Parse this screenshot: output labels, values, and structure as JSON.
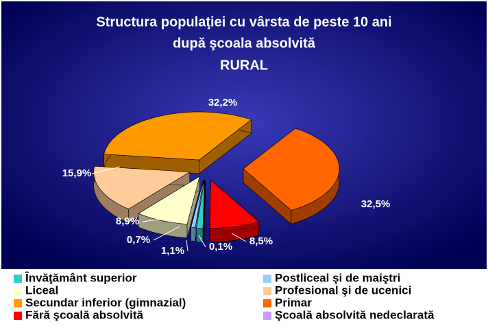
{
  "chart_data": {
    "type": "pie3d",
    "title_lines": [
      "Structura populaţiei cu vârsta de peste 10 ani",
      "după şcoala absolvită"
    ],
    "subtitle": "RURAL",
    "categories": [
      "Învăţământ superior",
      "Postliceal şi de maiştri",
      "Liceal",
      "Profesional şi de ucenici",
      "Secundar inferior (gimnazial)",
      "Primar",
      "Fără şcoală absolvită",
      "Şcoală absolvită nedeclarată"
    ],
    "values": [
      1.1,
      0.7,
      8.9,
      15.9,
      32.2,
      32.5,
      8.5,
      0.1
    ],
    "value_labels": [
      "1,1%",
      "0,7%",
      "8,9%",
      "15,9%",
      "32,2%",
      "32,5%",
      "8,5%",
      "0,1%"
    ],
    "colors": [
      "#33CCCC",
      "#99CCFF",
      "#FFFFCC",
      "#FFCC99",
      "#FF9900",
      "#FF6600",
      "#FF0000",
      "#CC99FF"
    ],
    "legend": "bottom"
  }
}
